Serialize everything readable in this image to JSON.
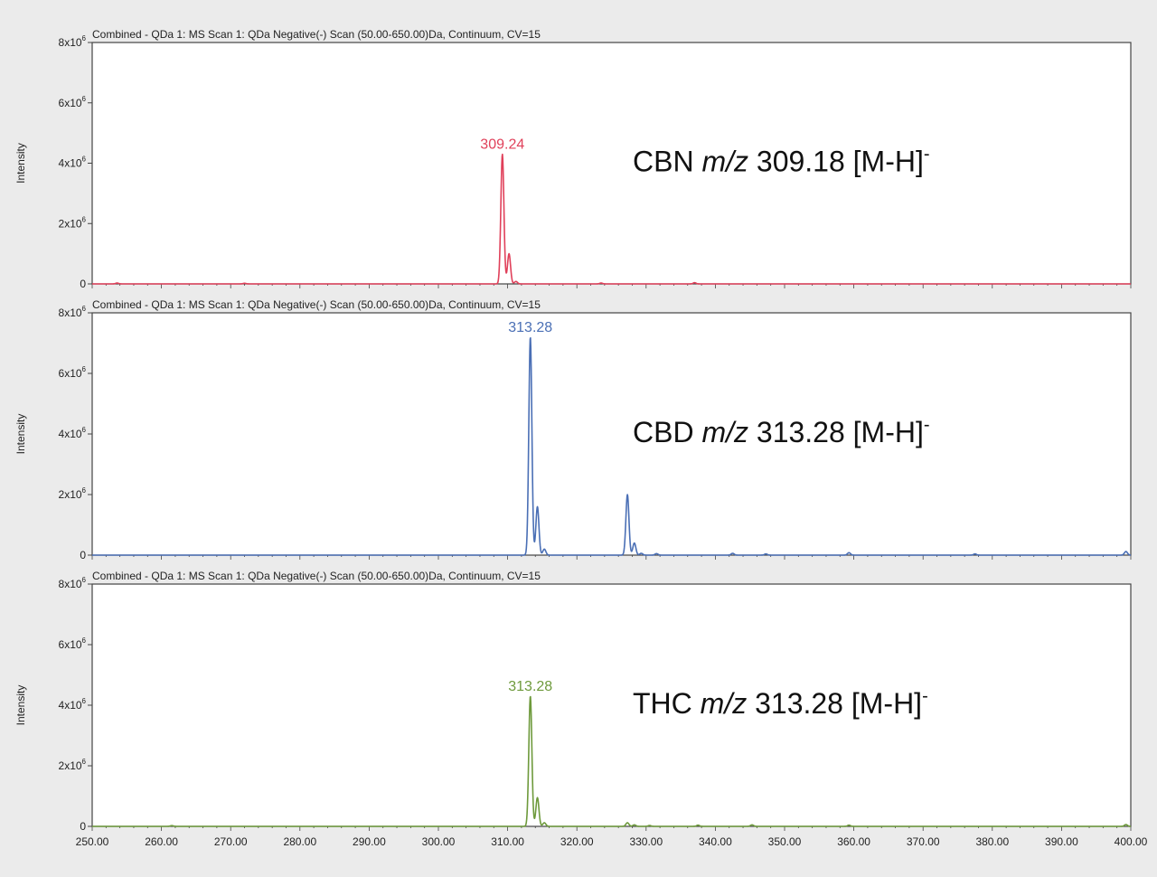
{
  "chart_data": {
    "type": "line",
    "x_axis": {
      "range": [
        250,
        400
      ],
      "ticks": [
        250,
        260,
        270,
        280,
        290,
        300,
        310,
        320,
        330,
        340,
        350,
        360,
        370,
        380,
        390,
        400
      ],
      "tick_labels": [
        "250.00",
        "260.00",
        "270.00",
        "280.00",
        "290.00",
        "300.00",
        "310.00",
        "320.00",
        "330.00",
        "340.00",
        "350.00",
        "360.00",
        "370.00",
        "380.00",
        "390.00",
        "400.00"
      ]
    },
    "panels": [
      {
        "header": "Combined - QDa 1: MS Scan 1: QDa Negative(-) Scan (50.00-650.00)Da, Continuum, CV=15",
        "ylabel": "Intensity",
        "ylim": [
          0,
          8000000
        ],
        "yticks": [
          {
            "value": 0,
            "base": "0",
            "exp": ""
          },
          {
            "value": 2000000,
            "base": "2x10",
            "exp": "6"
          },
          {
            "value": 4000000,
            "base": "4x10",
            "exp": "6"
          },
          {
            "value": 6000000,
            "base": "6x10",
            "exp": "6"
          },
          {
            "value": 8000000,
            "base": "8x10",
            "exp": "6"
          }
        ],
        "color": "#e0405a",
        "peak_label": {
          "text": "309.24",
          "x": 309.24,
          "y": 4300000
        },
        "annotation": {
          "compound": "CBN ",
          "unit": "m/z",
          "value": " 309.18 [M-H]",
          "sup": "-"
        },
        "peaks": [
          {
            "x": 309.24,
            "y": 4300000
          },
          {
            "x": 310.2,
            "y": 1000000
          },
          {
            "x": 311.2,
            "y": 80000
          },
          {
            "x": 253.6,
            "y": 30000
          },
          {
            "x": 272.0,
            "y": 20000
          },
          {
            "x": 323.5,
            "y": 30000
          },
          {
            "x": 337.0,
            "y": 40000
          }
        ]
      },
      {
        "header": "Combined - QDa 1: MS Scan 1: QDa Negative(-) Scan (50.00-650.00)Da, Continuum, CV=15",
        "ylabel": "Intensity",
        "ylim": [
          0,
          8000000
        ],
        "yticks": [
          {
            "value": 0,
            "base": "0",
            "exp": ""
          },
          {
            "value": 2000000,
            "base": "2x10",
            "exp": "6"
          },
          {
            "value": 4000000,
            "base": "4x10",
            "exp": "6"
          },
          {
            "value": 6000000,
            "base": "6x10",
            "exp": "6"
          },
          {
            "value": 8000000,
            "base": "8x10",
            "exp": "6"
          }
        ],
        "color": "#4a6fb5",
        "peak_label": {
          "text": "313.28",
          "x": 313.28,
          "y": 7200000
        },
        "annotation": {
          "compound": "CBD ",
          "unit": "m/z",
          "value": " 313.28 [M-H]",
          "sup": "-"
        },
        "peaks": [
          {
            "x": 313.28,
            "y": 7200000
          },
          {
            "x": 314.3,
            "y": 1600000
          },
          {
            "x": 315.3,
            "y": 200000
          },
          {
            "x": 327.3,
            "y": 2000000
          },
          {
            "x": 328.3,
            "y": 400000
          },
          {
            "x": 329.3,
            "y": 60000
          },
          {
            "x": 331.5,
            "y": 50000
          },
          {
            "x": 342.5,
            "y": 60000
          },
          {
            "x": 347.3,
            "y": 40000
          },
          {
            "x": 359.3,
            "y": 80000
          },
          {
            "x": 377.5,
            "y": 40000
          },
          {
            "x": 399.3,
            "y": 120000
          }
        ]
      },
      {
        "header": "Combined - QDa 1: MS Scan 1: QDa Negative(-) Scan (50.00-650.00)Da, Continuum, CV=15",
        "ylabel": "Intensity",
        "ylim": [
          0,
          8000000
        ],
        "yticks": [
          {
            "value": 0,
            "base": "0",
            "exp": ""
          },
          {
            "value": 2000000,
            "base": "2x10",
            "exp": "6"
          },
          {
            "value": 4000000,
            "base": "4x10",
            "exp": "6"
          },
          {
            "value": 6000000,
            "base": "6x10",
            "exp": "6"
          },
          {
            "value": 8000000,
            "base": "8x10",
            "exp": "6"
          }
        ],
        "color": "#6e9a3c",
        "peak_label": {
          "text": "313.28",
          "x": 313.28,
          "y": 4300000
        },
        "annotation": {
          "compound": "THC ",
          "unit": "m/z",
          "value": " 313.28 [M-H]",
          "sup": "-"
        },
        "peaks": [
          {
            "x": 313.28,
            "y": 4300000
          },
          {
            "x": 314.3,
            "y": 950000
          },
          {
            "x": 315.3,
            "y": 120000
          },
          {
            "x": 327.3,
            "y": 120000
          },
          {
            "x": 328.3,
            "y": 50000
          },
          {
            "x": 330.5,
            "y": 30000
          },
          {
            "x": 337.5,
            "y": 40000
          },
          {
            "x": 345.3,
            "y": 50000
          },
          {
            "x": 359.3,
            "y": 40000
          },
          {
            "x": 399.3,
            "y": 60000
          },
          {
            "x": 261.5,
            "y": 25000
          }
        ]
      }
    ]
  }
}
